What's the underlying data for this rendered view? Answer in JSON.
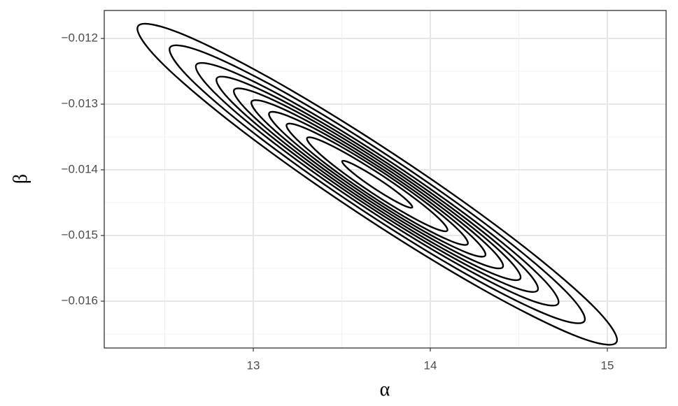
{
  "chart_data": {
    "type": "contour",
    "x_label": "α",
    "y_label": "β",
    "color": "#000000",
    "grid": true,
    "xlim": [
      12.158,
      15.332
    ],
    "ylim": [
      -0.016713,
      -0.011574
    ],
    "xticks": [
      13,
      14,
      15
    ],
    "yticks": [
      {
        "value": -0.012,
        "label": "−0.012"
      },
      {
        "value": -0.013,
        "label": "−0.013"
      },
      {
        "value": -0.014,
        "label": "−0.014"
      },
      {
        "value": -0.015,
        "label": "−0.015"
      },
      {
        "value": -0.016,
        "label": "−0.016"
      }
    ],
    "minor_xticks": [
      12.5,
      13.5,
      14.5
    ],
    "minor_yticks": [
      -0.0125,
      -0.0135,
      -0.0145,
      -0.0155,
      -0.0165
    ],
    "series": [
      {
        "x": [
          15.051,
          14.816,
          14.283,
          13.593,
          12.931,
          12.476,
          12.349,
          12.584,
          13.117,
          13.807,
          14.469,
          14.924
        ],
        "y": [
          -0.016628,
          -0.016523,
          -0.015802,
          -0.014657,
          -0.013394,
          -0.012354,
          -0.011812,
          -0.011917,
          -0.012638,
          -0.013783,
          -0.015046,
          -0.016086
        ]
      },
      {
        "x": [
          14.87,
          14.667,
          14.204,
          13.607,
          13.034,
          12.64,
          12.53,
          12.733,
          13.196,
          13.793,
          14.366,
          14.76
        ],
        "y": [
          -0.016305,
          -0.016214,
          -0.01559,
          -0.014598,
          -0.013505,
          -0.012604,
          -0.012135,
          -0.012226,
          -0.01285,
          -0.013842,
          -0.014935,
          -0.015836
        ]
      },
      {
        "x": [
          14.722,
          14.544,
          14.141,
          13.619,
          13.119,
          12.775,
          12.678,
          12.856,
          13.259,
          13.781,
          14.281,
          14.625
        ],
        "y": [
          -0.01604,
          -0.015962,
          -0.015416,
          -0.01455,
          -0.013596,
          -0.012809,
          -0.0124,
          -0.012478,
          -0.013024,
          -0.01389,
          -0.014844,
          -0.015631
        ]
      },
      {
        "x": [
          14.606,
          14.449,
          14.091,
          13.628,
          13.184,
          12.879,
          12.794,
          12.951,
          13.309,
          13.772,
          14.216,
          14.521
        ],
        "y": [
          -0.015835,
          -0.015765,
          -0.015281,
          -0.014513,
          -0.013666,
          -0.012968,
          -0.012605,
          -0.012675,
          -0.013159,
          -0.013927,
          -0.014774,
          -0.015472
        ]
      },
      {
        "x": [
          14.508,
          14.367,
          14.048,
          13.636,
          13.241,
          12.969,
          12.892,
          13.033,
          13.352,
          13.764,
          14.159,
          14.431
        ],
        "y": [
          -0.015659,
          -0.015596,
          -0.015165,
          -0.014481,
          -0.013727,
          -0.013105,
          -0.012781,
          -0.012844,
          -0.013275,
          -0.013959,
          -0.014713,
          -0.015335
        ]
      },
      {
        "x": [
          14.409,
          14.285,
          14.006,
          13.644,
          13.297,
          13.058,
          12.991,
          13.115,
          13.394,
          13.756,
          14.103,
          14.342
        ],
        "y": [
          -0.015482,
          -0.015428,
          -0.015049,
          -0.014449,
          -0.013787,
          -0.013241,
          -0.012958,
          -0.013012,
          -0.013391,
          -0.013991,
          -0.014653,
          -0.015199
        ]
      },
      {
        "x": [
          14.31,
          14.204,
          13.963,
          13.652,
          13.353,
          13.148,
          13.09,
          13.196,
          13.437,
          13.748,
          14.047,
          14.252
        ],
        "y": [
          -0.015306,
          -0.015259,
          -0.014934,
          -0.014417,
          -0.013847,
          -0.013378,
          -0.013134,
          -0.013181,
          -0.013506,
          -0.014023,
          -0.014593,
          -0.015062
        ]
      },
      {
        "x": [
          14.211,
          14.122,
          13.92,
          13.659,
          13.409,
          13.237,
          13.189,
          13.278,
          13.48,
          13.741,
          13.991,
          14.163
        ],
        "y": [
          -0.01513,
          -0.015091,
          -0.014818,
          -0.014385,
          -0.013908,
          -0.013514,
          -0.01331,
          -0.013349,
          -0.013622,
          -0.014055,
          -0.014532,
          -0.014926
        ]
      },
      {
        "x": [
          14.096,
          14.027,
          13.871,
          13.669,
          13.475,
          13.342,
          13.304,
          13.373,
          13.529,
          13.731,
          13.925,
          14.058
        ],
        "y": [
          -0.014925,
          -0.014894,
          -0.014683,
          -0.014348,
          -0.013978,
          -0.013674,
          -0.013515,
          -0.013546,
          -0.013757,
          -0.014092,
          -0.014462,
          -0.014766
        ]
      },
      {
        "x": [
          13.898,
          13.863,
          13.785,
          13.684,
          13.587,
          13.521,
          13.502,
          13.537,
          13.615,
          13.716,
          13.813,
          13.879
        ],
        "y": [
          -0.014572,
          -0.014557,
          -0.014451,
          -0.014284,
          -0.014099,
          -0.013947,
          -0.013868,
          -0.013883,
          -0.013989,
          -0.014156,
          -0.014341,
          -0.014493
        ]
      }
    ]
  }
}
